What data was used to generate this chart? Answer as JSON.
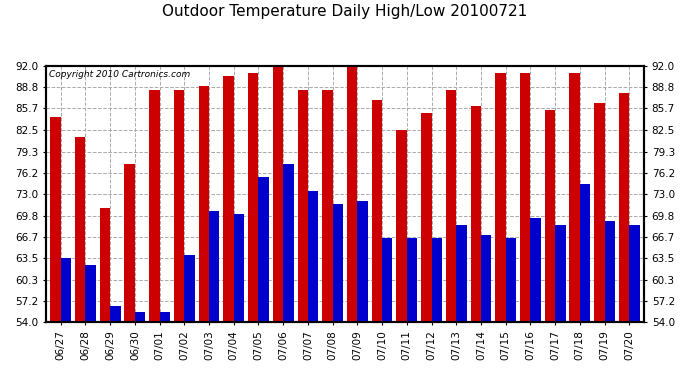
{
  "title": "Outdoor Temperature Daily High/Low 20100721",
  "copyright": "Copyright 2010 Cartronics.com",
  "dates": [
    "06/27",
    "06/28",
    "06/29",
    "06/30",
    "07/01",
    "07/02",
    "07/03",
    "07/04",
    "07/05",
    "07/06",
    "07/07",
    "07/08",
    "07/09",
    "07/10",
    "07/11",
    "07/12",
    "07/13",
    "07/14",
    "07/15",
    "07/16",
    "07/17",
    "07/18",
    "07/19",
    "07/20"
  ],
  "highs": [
    84.5,
    81.5,
    71.0,
    77.5,
    88.5,
    88.5,
    89.0,
    90.5,
    91.0,
    92.5,
    88.5,
    88.5,
    92.5,
    87.0,
    82.5,
    85.0,
    88.5,
    86.0,
    91.0,
    91.0,
    85.5,
    91.0,
    86.5,
    88.0
  ],
  "lows": [
    63.5,
    62.5,
    56.5,
    55.5,
    55.5,
    64.0,
    70.5,
    70.0,
    75.5,
    77.5,
    73.5,
    71.5,
    72.0,
    66.5,
    66.5,
    66.5,
    68.5,
    67.0,
    66.5,
    69.5,
    68.5,
    74.5,
    69.0,
    68.5
  ],
  "high_color": "#cc0000",
  "low_color": "#0000cc",
  "ylim_min": 54.0,
  "ylim_max": 92.0,
  "yticks": [
    54.0,
    57.2,
    60.3,
    63.5,
    66.7,
    69.8,
    73.0,
    76.2,
    79.3,
    82.5,
    85.7,
    88.8,
    92.0
  ],
  "background_color": "#ffffff",
  "grid_color": "#aaaaaa",
  "bar_width": 0.42
}
